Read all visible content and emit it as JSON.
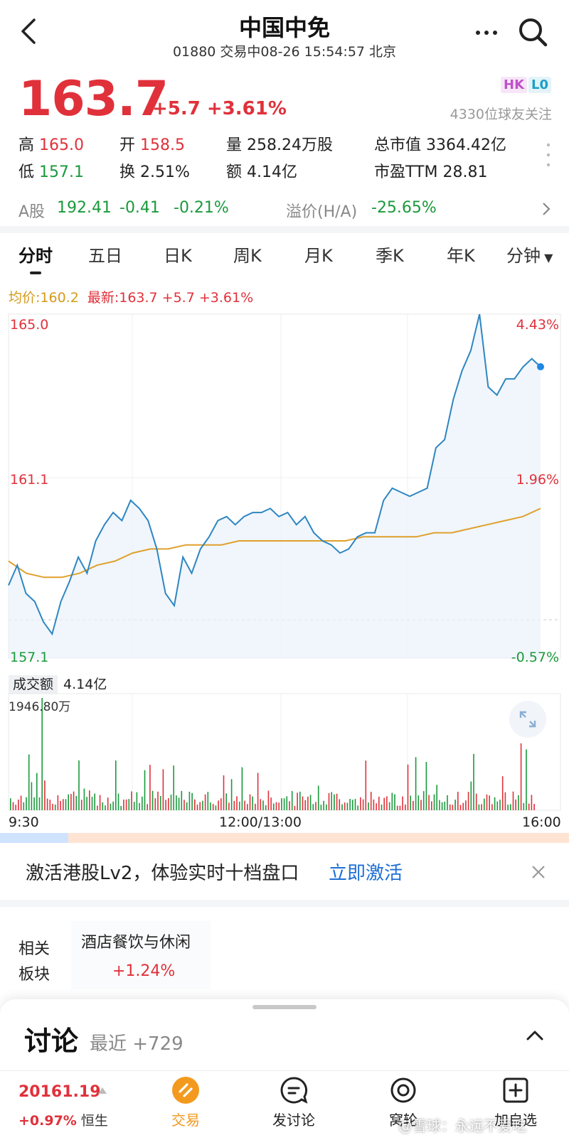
{
  "header": {
    "title": "中国中免",
    "subtitle": "01880 交易中08-26 15:54:57 北京"
  },
  "quote": {
    "price": "163.7",
    "change": "+5.7 +3.61%",
    "badges": [
      "HK",
      "L0"
    ],
    "followers": "4330位球友关注",
    "stats": {
      "high_label": "高",
      "high": "165.0",
      "open_label": "开",
      "open": "158.5",
      "volume_label": "量",
      "volume": "258.24万股",
      "mktcap_label": "总市值",
      "mktcap": "3364.42亿",
      "low_label": "低",
      "low": "157.1",
      "turnover_label": "换",
      "turnover": "2.51%",
      "amount_label": "额",
      "amount": "4.14亿",
      "pe_label": "市盈TTM",
      "pe": "28.81"
    },
    "a_share": {
      "label": "A股",
      "price": "192.41",
      "change": "-0.41",
      "change_pct": "-0.21%",
      "premium_label": "溢价(H/A)",
      "premium": "-25.65%"
    }
  },
  "tabs": [
    "分时",
    "五日",
    "日K",
    "周K",
    "月K",
    "季K",
    "年K",
    "分钟"
  ],
  "chart": {
    "legend_avg": "均价:160.2",
    "legend_latest": "最新:163.7 +5.7 +3.61%",
    "y_high": "165.0",
    "y_mid": "161.1",
    "y_low": "157.1",
    "pct_high": "4.43%",
    "pct_mid": "1.96%",
    "pct_low": "-0.57%",
    "vol_label": "成交额",
    "vol_value": "4.14亿",
    "vol_max": "1946.80万",
    "time_start": "9:30",
    "time_mid": "12:00/13:00",
    "time_end": "16:00"
  },
  "chart_data": {
    "type": "line",
    "ylim": [
      157.1,
      165.0
    ],
    "series": [
      {
        "values": [
          158.3,
          158.8,
          158.1,
          157.9,
          157.4,
          157.1,
          157.9,
          158.4,
          159.0,
          158.6,
          159.4,
          159.8,
          160.1,
          159.9,
          160.4,
          160.2,
          159.9,
          159.2,
          158.1,
          157.8,
          159.0,
          158.6,
          159.2,
          159.5,
          159.9,
          160.0,
          159.8,
          160.0,
          160.1,
          160.1,
          160.2,
          160.0,
          160.1,
          159.8,
          160.0,
          159.6,
          159.4,
          159.3,
          159.1,
          159.2,
          159.5,
          159.6,
          159.6,
          160.4,
          160.7,
          160.6,
          160.5,
          160.6,
          160.7,
          161.7,
          161.9,
          162.9,
          163.6,
          164.1,
          165.0,
          163.2,
          163.0,
          163.4,
          163.4,
          163.7,
          163.9,
          163.7
        ],
        "color": "#2e86c1"
      },
      {
        "values": [
          158.9,
          158.6,
          158.5,
          158.5,
          158.6,
          158.8,
          158.9,
          159.1,
          159.2,
          159.2,
          159.3,
          159.3,
          159.3,
          159.4,
          159.4,
          159.4,
          159.4,
          159.4,
          159.4,
          159.4,
          159.5,
          159.5,
          159.5,
          159.5,
          159.6,
          159.6,
          159.7,
          159.8,
          159.9,
          160.0,
          160.2
        ],
        "color": "#e0a02c"
      }
    ]
  },
  "banner": {
    "text": "激活港股Lv2，体验实时十档盘口",
    "link": "立即激活"
  },
  "related": {
    "label_line1": "相关",
    "label_line2": "板块",
    "name": "酒店餐饮与休闲",
    "change": "+1.24%"
  },
  "discussion": {
    "title": "讨论",
    "recent": "最近 +729"
  },
  "bottom": {
    "index_value": "20161.19",
    "index_change": "+0.97%",
    "index_name": "恒生",
    "nav": [
      "交易",
      "发讨论",
      "窝轮",
      "加自选"
    ],
    "watermark": "@雪球：永远不爱吃"
  },
  "colors": {
    "up": "#e0313b",
    "down": "#1a9a3c",
    "price_line": "#2e86c1",
    "avg_line": "#e0a02c",
    "accent_blue": "#1d6fd6",
    "trade_orange": "#f39a1e"
  }
}
